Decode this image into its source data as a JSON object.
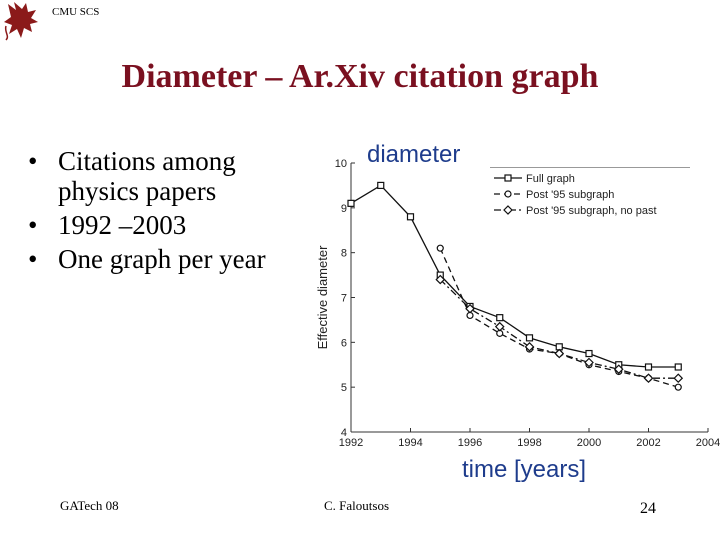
{
  "header": {
    "label": "CMU SCS"
  },
  "slide": {
    "title": "Diameter – Ar.Xiv citation graph",
    "bullets": [
      {
        "bullet": "•",
        "text": "Citations among physics papers"
      },
      {
        "bullet": "•",
        "text": "1992 –2003"
      },
      {
        "bullet": "•",
        "text": "One graph per year"
      }
    ]
  },
  "annotations": {
    "diameter": "diameter",
    "time": "time [years]"
  },
  "footer": {
    "left": "GATech 08",
    "middle": "C. Faloutsos",
    "page": "24"
  },
  "colors": {
    "title": "#7a1020",
    "annotation": "#1e3c8c",
    "logo": "#8b1a1a"
  },
  "logo": {
    "icon": "griffin-icon"
  },
  "chart_data": {
    "type": "line",
    "title": "",
    "xlabel": "",
    "ylabel": "Effective diameter",
    "xlim": [
      1992,
      2004
    ],
    "ylim": [
      4,
      10
    ],
    "xticks": [
      1992,
      1994,
      1996,
      1998,
      2000,
      2002,
      2004
    ],
    "yticks": [
      4,
      5,
      6,
      7,
      8,
      9,
      10
    ],
    "legend_position": "top-right",
    "grid": false,
    "series": [
      {
        "name": "Full graph",
        "marker": "square",
        "dash": "solid",
        "x": [
          1992,
          1993,
          1994,
          1995,
          1996,
          1997,
          1998,
          1999,
          2000,
          2001,
          2002,
          2003
        ],
        "y": [
          9.1,
          9.5,
          8.8,
          7.5,
          6.8,
          6.55,
          6.1,
          5.9,
          5.75,
          5.5,
          5.45,
          5.45
        ]
      },
      {
        "name": "Post '95 subgraph",
        "marker": "circle",
        "dash": "dashed",
        "x": [
          1995,
          1996,
          1997,
          1998,
          1999,
          2000,
          2001,
          2002,
          2003
        ],
        "y": [
          8.1,
          6.6,
          6.2,
          5.85,
          5.75,
          5.5,
          5.35,
          5.2,
          5.0
        ]
      },
      {
        "name": "Post '95 subgraph, no past",
        "marker": "diamond",
        "dash": "dashdot",
        "x": [
          1995,
          1996,
          1997,
          1998,
          1999,
          2000,
          2001,
          2002,
          2003
        ],
        "y": [
          7.4,
          6.75,
          6.35,
          5.9,
          5.75,
          5.55,
          5.4,
          5.2,
          5.2
        ]
      }
    ]
  }
}
